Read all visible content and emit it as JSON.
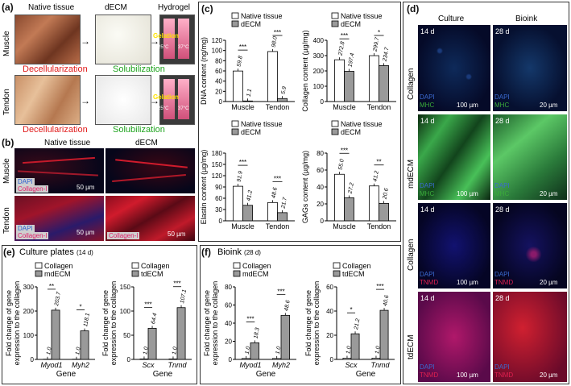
{
  "panel_a": {
    "label": "(a)",
    "col_native": "Native tissue",
    "col_decm": "dECM",
    "col_hydrogel": "Hydrogel",
    "row_muscle": "Muscle",
    "row_tendon": "Tendon",
    "decell": "Decellularization",
    "solub": "Solubilization",
    "gelation": "Gelation",
    "t25": "25°C",
    "t37": "37°C"
  },
  "panel_b": {
    "label": "(b)",
    "col_native": "Native tissue",
    "col_decm": "dECM",
    "row_muscle": "Muscle",
    "row_tendon": "Tendon",
    "stain_dapi": "DAPI",
    "stain_col": "Collagen-I",
    "scale": "50 µm"
  },
  "panel_c": {
    "label": "(c)"
  },
  "panel_d": {
    "label": "(d)",
    "col_culture": "Culture",
    "col_bioink": "Bioink",
    "rows": [
      "Collagen",
      "mdECM",
      "Collagen",
      "tdECM"
    ],
    "d14": "14 d",
    "d28": "28 d",
    "dapi": "DAPI",
    "mhc": "MHC",
    "tnmd": "TNMD",
    "s100": "100 µm",
    "s20": "20 µm"
  },
  "panel_e": {
    "label": "(e)",
    "title": "Culture plates",
    "title_sub": "(14 d)"
  },
  "panel_f": {
    "label": "(f)",
    "title": "Bioink",
    "title_sub": "(28 d)"
  },
  "chart_data": [
    {
      "id": "dna",
      "type": "bar",
      "ylabel": "DNA content (ng/mg)",
      "ylim": [
        0,
        120
      ],
      "yticks": [
        0,
        20,
        40,
        60,
        80,
        100,
        120
      ],
      "categories": [
        "Muscle",
        "Tendon"
      ],
      "series": [
        {
          "name": "Native tissue",
          "values": [
            59.8,
            98.0
          ]
        },
        {
          "name": "dECM",
          "values": [
            1.1,
            5.9
          ]
        }
      ],
      "labels": [
        [
          "59.8",
          "98.0"
        ],
        [
          "1.1",
          "5.9"
        ]
      ],
      "sig": [
        "***",
        "***"
      ]
    },
    {
      "id": "collagen",
      "type": "bar",
      "ylabel": "Collagen content (µg/mg)",
      "ylim": [
        0,
        400
      ],
      "yticks": [
        0,
        100,
        200,
        300,
        400
      ],
      "categories": [
        "Muscle",
        "Tendon"
      ],
      "series": [
        {
          "name": "Native tissue",
          "values": [
            272.8,
            299.7
          ]
        },
        {
          "name": "dECM",
          "values": [
            197.4,
            234.7
          ]
        }
      ],
      "labels": [
        [
          "272.8",
          "299.7"
        ],
        [
          "197.4",
          "234.7"
        ]
      ],
      "sig": [
        "***",
        "*"
      ]
    },
    {
      "id": "elastin",
      "type": "bar",
      "ylabel": "Elastin content (µg/mg)",
      "ylim": [
        0,
        180
      ],
      "yticks": [
        0,
        30,
        60,
        90,
        120,
        150,
        180
      ],
      "categories": [
        "Muscle",
        "Tendon"
      ],
      "series": [
        {
          "name": "Native tissue",
          "values": [
            91.9,
            48.6
          ]
        },
        {
          "name": "dECM",
          "values": [
            41.2,
            21.7
          ]
        }
      ],
      "labels": [
        [
          "91.9",
          "48.6"
        ],
        [
          "41.2",
          "21.7"
        ]
      ],
      "sig": [
        "***",
        "***"
      ]
    },
    {
      "id": "gags",
      "type": "bar",
      "ylabel": "GAGs content (µg/mg)",
      "ylim": [
        0,
        80
      ],
      "yticks": [
        0,
        20,
        40,
        60,
        80
      ],
      "categories": [
        "Muscle",
        "Tendon"
      ],
      "series": [
        {
          "name": "Native tissue",
          "values": [
            55.0,
            41.2
          ]
        },
        {
          "name": "dECM",
          "values": [
            27.2,
            20.6
          ]
        }
      ],
      "labels": [
        [
          "55.0",
          "41.2"
        ],
        [
          "27.2",
          "20.6"
        ]
      ],
      "sig": [
        "***",
        "**"
      ]
    },
    {
      "id": "e1",
      "type": "bar",
      "ylabel": "Fold change of gene expression to the collagen",
      "xlabel": "Gene",
      "ylim": [
        0,
        300
      ],
      "yticks": [
        0,
        100,
        200,
        300
      ],
      "categories": [
        "Myod1",
        "Myh2"
      ],
      "series": [
        {
          "name": "Collagen",
          "values": [
            1.0,
            1.0
          ]
        },
        {
          "name": "mdECM",
          "values": [
            203.7,
            118.1
          ]
        }
      ],
      "labels": [
        [
          "1.0",
          "1.0"
        ],
        [
          "203.7",
          "118.1"
        ]
      ],
      "sig": [
        "**",
        "*"
      ]
    },
    {
      "id": "e2",
      "type": "bar",
      "ylabel": "Fold change of gene expression to the collagen",
      "xlabel": "Gene",
      "ylim": [
        0,
        150
      ],
      "yticks": [
        0,
        50,
        100,
        150
      ],
      "categories": [
        "Scx",
        "Tnmd"
      ],
      "series": [
        {
          "name": "Collagen",
          "values": [
            1.0,
            1.0
          ]
        },
        {
          "name": "tdECM",
          "values": [
            64.4,
            107.1
          ]
        }
      ],
      "labels": [
        [
          "1.0",
          "1.0"
        ],
        [
          "64.4",
          "107.1"
        ]
      ],
      "sig": [
        "***",
        "***"
      ]
    },
    {
      "id": "f1",
      "type": "bar",
      "ylabel": "Fold change of gene expression to the collagen",
      "xlabel": "Gene",
      "ylim": [
        0,
        80
      ],
      "yticks": [
        0,
        20,
        40,
        60,
        80
      ],
      "categories": [
        "Myod1",
        "Myh2"
      ],
      "series": [
        {
          "name": "Collagen",
          "values": [
            1.0,
            1.0
          ]
        },
        {
          "name": "mdECM",
          "values": [
            18.3,
            48.6
          ]
        }
      ],
      "labels": [
        [
          "1.0",
          "1.0"
        ],
        [
          "18.3",
          "48.6"
        ]
      ],
      "sig": [
        "***",
        "***"
      ]
    },
    {
      "id": "f2",
      "type": "bar",
      "ylabel": "Fold change of gene expression to the collagen",
      "xlabel": "Gene",
      "ylim": [
        0,
        60
      ],
      "yticks": [
        0,
        20,
        40,
        60
      ],
      "categories": [
        "Scx",
        "Tnmd"
      ],
      "series": [
        {
          "name": "Collagen",
          "values": [
            1.0,
            1.0
          ]
        },
        {
          "name": "tdECM",
          "values": [
            21.2,
            40.6
          ]
        }
      ],
      "labels": [
        [
          "1.0",
          "1.0"
        ],
        [
          "21.2",
          "40.6"
        ]
      ],
      "sig": [
        "*",
        "***"
      ]
    }
  ]
}
